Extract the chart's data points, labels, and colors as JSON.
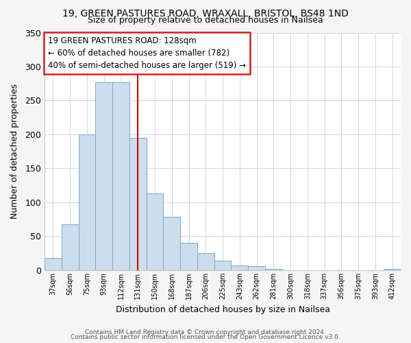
{
  "title": "19, GREEN PASTURES ROAD, WRAXALL, BRISTOL, BS48 1ND",
  "subtitle": "Size of property relative to detached houses in Nailsea",
  "xlabel": "Distribution of detached houses by size in Nailsea",
  "ylabel": "Number of detached properties",
  "bar_color": "#ccdded",
  "bar_edge_color": "#7aaac8",
  "categories": [
    "37sqm",
    "56sqm",
    "75sqm",
    "93sqm",
    "112sqm",
    "131sqm",
    "150sqm",
    "168sqm",
    "187sqm",
    "206sqm",
    "225sqm",
    "243sqm",
    "262sqm",
    "281sqm",
    "300sqm",
    "318sqm",
    "337sqm",
    "356sqm",
    "375sqm",
    "393sqm",
    "412sqm"
  ],
  "values": [
    18,
    68,
    200,
    277,
    277,
    195,
    113,
    79,
    40,
    25,
    14,
    7,
    6,
    2,
    0,
    0,
    0,
    0,
    0,
    0,
    2
  ],
  "vline_x": 5,
  "vline_color": "#cc0000",
  "ylim": [
    0,
    350
  ],
  "yticks": [
    0,
    50,
    100,
    150,
    200,
    250,
    300,
    350
  ],
  "annotation_title": "19 GREEN PASTURES ROAD: 128sqm",
  "annotation_line1": "← 60% of detached houses are smaller (782)",
  "annotation_line2": "40% of semi-detached houses are larger (519) →",
  "annotation_box_color": "#ffffff",
  "annotation_box_edge_color": "#cc2222",
  "footer1": "Contains HM Land Registry data © Crown copyright and database right 2024.",
  "footer2": "Contains public sector information licensed under the Open Government Licence v3.0.",
  "background_color": "#f5f5f5",
  "plot_background": "#ffffff",
  "grid_color": "#c8d0dc"
}
